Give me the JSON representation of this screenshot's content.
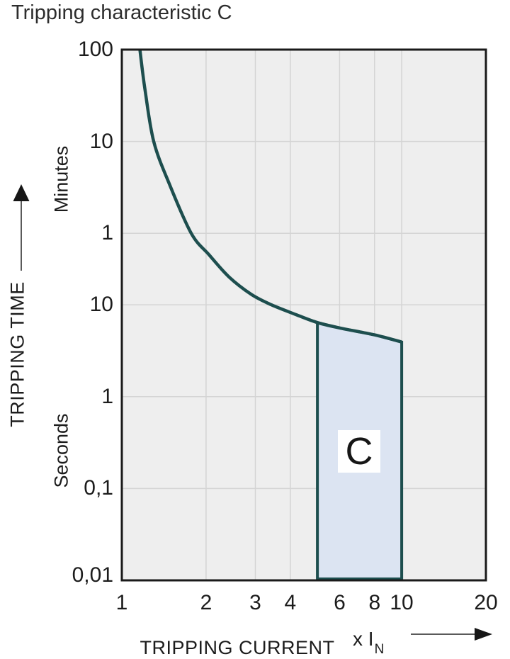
{
  "page_title": "Tripping characteristic C",
  "colors": {
    "curve": "#1d4e4e",
    "region_fill": "#dce4f2",
    "plot_background": "#eeeeee",
    "gridline": "#d4d4d4",
    "plot_border": "#1a1a1a",
    "text": "#1c1c1c"
  },
  "y_axis": {
    "title": "TRIPPING TIME",
    "unit_upper": "Minutes",
    "unit_lower": "Seconds",
    "ticks": [
      {
        "label": "100",
        "seconds": 6000
      },
      {
        "label": "10",
        "seconds": 600
      },
      {
        "label": "1",
        "seconds": 60
      },
      {
        "label": "10",
        "seconds": 10
      },
      {
        "label": "1",
        "seconds": 1
      },
      {
        "label": "0,1",
        "seconds": 0.1
      },
      {
        "label": "0,01",
        "seconds": 0.01
      }
    ]
  },
  "x_axis": {
    "title": "TRIPPING CURRENT",
    "multiplier_prefix": "x I",
    "multiplier_subscript": "N",
    "ticks": [
      {
        "label": "1",
        "value": 1
      },
      {
        "label": "2",
        "value": 2
      },
      {
        "label": "3",
        "value": 3
      },
      {
        "label": "4",
        "value": 4
      },
      {
        "label": "6",
        "value": 6
      },
      {
        "label": "8",
        "value": 8
      },
      {
        "label": "10",
        "value": 10
      },
      {
        "label": "20",
        "value": 20
      }
    ]
  },
  "chart_data": {
    "type": "line",
    "title": "Tripping characteristic C",
    "xlabel": "TRIPPING CURRENT x IN",
    "ylabel": "TRIPPING TIME",
    "x_scale": "log",
    "y_scale": "log",
    "xlim": [
      1,
      20
    ],
    "ylim_seconds": [
      0.01,
      6000
    ],
    "grid": true,
    "x_gridlines": [
      2,
      3,
      4,
      6,
      8,
      10
    ],
    "y_gridlines_seconds": [
      600,
      60,
      10,
      1,
      0.1
    ],
    "series": [
      {
        "name": "tripping-curve",
        "points_x_multiple_vs_seconds": [
          [
            1.16,
            6000
          ],
          [
            1.21,
            2200
          ],
          [
            1.3,
            600
          ],
          [
            1.48,
            205
          ],
          [
            1.77,
            60
          ],
          [
            2.05,
            35
          ],
          [
            2.42,
            20
          ],
          [
            2.9,
            13
          ],
          [
            3.42,
            10
          ],
          [
            4.2,
            7.8
          ],
          [
            5.0,
            6.4
          ],
          [
            6.0,
            5.6
          ],
          [
            8.0,
            4.7
          ],
          [
            10.0,
            3.93
          ]
        ]
      }
    ],
    "region": {
      "label": "C",
      "x_range": [
        5,
        10
      ],
      "top_edge_points_x_multiple_vs_seconds": [
        [
          5,
          6.4
        ],
        [
          6,
          5.6
        ],
        [
          8,
          4.7
        ],
        [
          10,
          3.93
        ]
      ],
      "bottom_seconds": 0.01
    }
  }
}
